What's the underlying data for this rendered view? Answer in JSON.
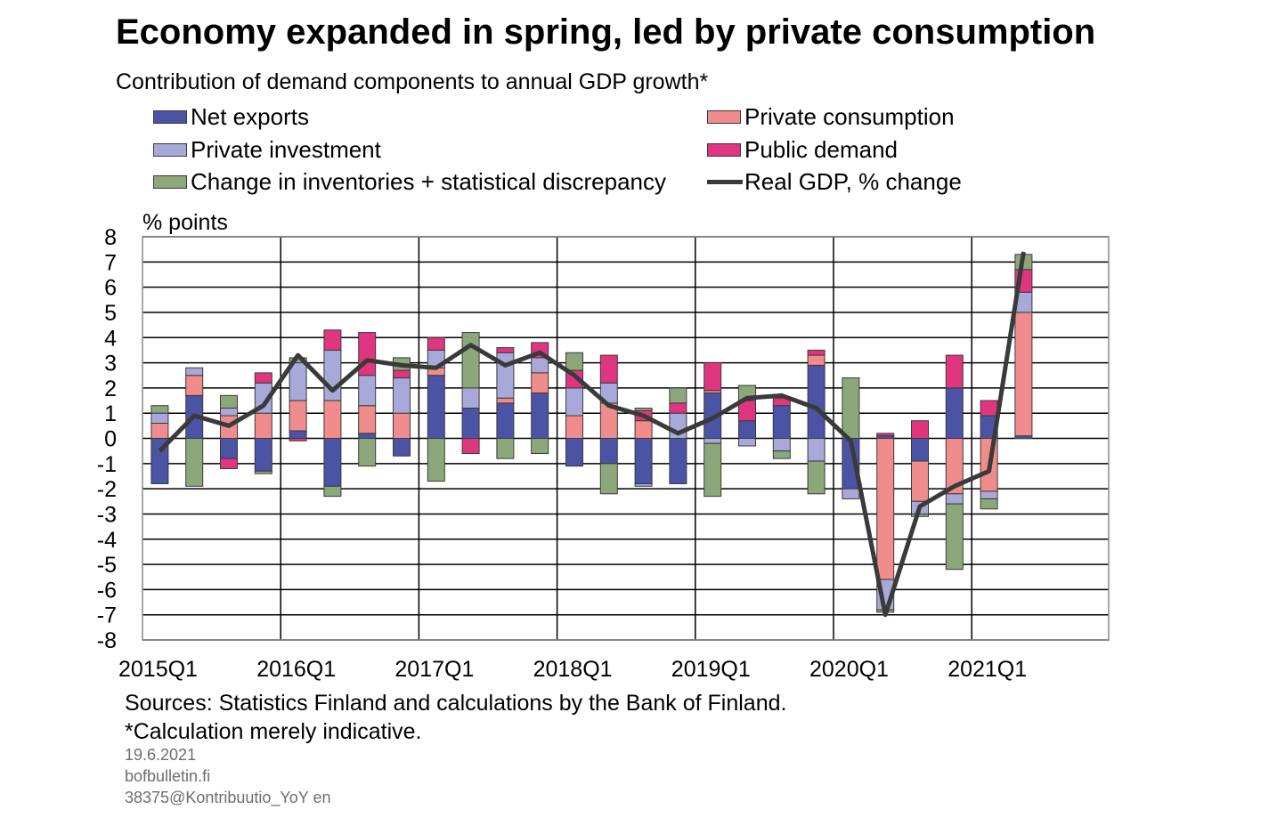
{
  "chart_data": {
    "type": "bar",
    "title": "Economy expanded in spring, led by private consumption",
    "subtitle": "Contribution of demand components to annual GDP growth*",
    "ylabel": "% points",
    "ylim": [
      -8,
      8
    ],
    "yticks": [
      "8",
      "7",
      "6",
      "5",
      "4",
      "3",
      "2",
      "1",
      "0",
      "-1",
      "-2",
      "-3",
      "-4",
      "-5",
      "-6",
      "-7",
      "-8"
    ],
    "x_tick_labels": [
      "2015Q1",
      "2016Q1",
      "2017Q1",
      "2018Q1",
      "2019Q1",
      "2020Q1",
      "2021Q1"
    ],
    "categories": [
      "2015Q1",
      "2015Q2",
      "2015Q3",
      "2015Q4",
      "2016Q1",
      "2016Q2",
      "2016Q3",
      "2016Q4",
      "2017Q1",
      "2017Q2",
      "2017Q3",
      "2017Q4",
      "2018Q1",
      "2018Q2",
      "2018Q3",
      "2018Q4",
      "2019Q1",
      "2019Q2",
      "2019Q3",
      "2019Q4",
      "2020Q1",
      "2020Q2",
      "2020Q3",
      "2020Q4",
      "2021Q1",
      "2021Q2"
    ],
    "stacked": true,
    "grid": true,
    "legend_position": "top",
    "series": [
      {
        "name": "Net exports",
        "color": "#4b53a5",
        "values": [
          -1.8,
          1.7,
          -0.8,
          -1.3,
          0.3,
          -1.9,
          0.2,
          -0.7,
          2.5,
          1.2,
          1.4,
          1.8,
          -1.1,
          -1.0,
          -1.8,
          -1.8,
          1.8,
          0.7,
          1.3,
          2.9,
          -2.0,
          0.1,
          -0.9,
          2.0,
          0.9,
          0.1
        ]
      },
      {
        "name": "Private consumption",
        "color": "#f08c8c",
        "values": [
          0.6,
          0.8,
          0.9,
          1.0,
          1.2,
          1.5,
          1.1,
          1.0,
          0.3,
          0.0,
          0.2,
          0.8,
          0.9,
          1.4,
          0.7,
          0.0,
          0.1,
          0.0,
          0.0,
          0.4,
          0.0,
          -5.6,
          -1.6,
          -2.2,
          -2.1,
          4.9
        ]
      },
      {
        "name": "Private investment",
        "color": "#a7aad8",
        "values": [
          0.4,
          0.3,
          0.3,
          1.2,
          1.5,
          2.0,
          1.2,
          1.4,
          0.7,
          0.8,
          1.8,
          0.6,
          1.1,
          0.8,
          -0.1,
          1.0,
          -0.2,
          -0.3,
          -0.5,
          -0.9,
          -0.4,
          -1.2,
          -0.5,
          -0.4,
          -0.3,
          0.8
        ]
      },
      {
        "name": "Public demand",
        "color": "#e0357f",
        "values": [
          0.0,
          0.0,
          -0.4,
          0.4,
          -0.1,
          0.8,
          1.7,
          0.3,
          0.5,
          -0.6,
          0.2,
          0.6,
          0.7,
          1.1,
          0.4,
          0.4,
          1.1,
          0.8,
          0.3,
          0.2,
          0.0,
          0.1,
          0.7,
          1.3,
          0.6,
          0.9
        ]
      },
      {
        "name": "Change in inventories + statistical discrepancy",
        "color": "#8ca87a",
        "values": [
          0.3,
          -1.9,
          0.5,
          -0.1,
          0.2,
          -0.4,
          -1.1,
          0.5,
          -1.7,
          2.2,
          -0.8,
          -0.6,
          0.7,
          -1.2,
          0.1,
          0.6,
          -2.1,
          0.6,
          -0.3,
          -1.3,
          2.4,
          -0.1,
          -0.1,
          -2.6,
          -0.4,
          0.6
        ]
      }
    ],
    "line": {
      "name": "Real GDP, % change",
      "color": "#3a3a3a",
      "values": [
        -0.5,
        0.9,
        0.5,
        1.3,
        3.3,
        1.9,
        3.1,
        2.9,
        2.8,
        3.7,
        2.9,
        3.4,
        2.5,
        1.3,
        0.9,
        0.2,
        0.8,
        1.6,
        1.7,
        1.2,
        -0.1,
        -7.0,
        -2.7,
        -1.9,
        -1.3,
        7.4
      ]
    }
  },
  "legend": {
    "net_exports": "Net exports",
    "private_investment": "Private investment",
    "inventories": "Change in inventories + statistical discrepancy",
    "private_consumption": "Private consumption",
    "public_demand": "Public demand",
    "real_gdp": "Real GDP, % change"
  },
  "footer": {
    "sources": "Sources: Statistics Finland and calculations by the Bank of Finland.",
    "note": "*Calculation merely indicative.",
    "date": "19.6.2021",
    "site": "bofbulletin.fi",
    "code": "38375@Kontribuutio_YoY en"
  }
}
